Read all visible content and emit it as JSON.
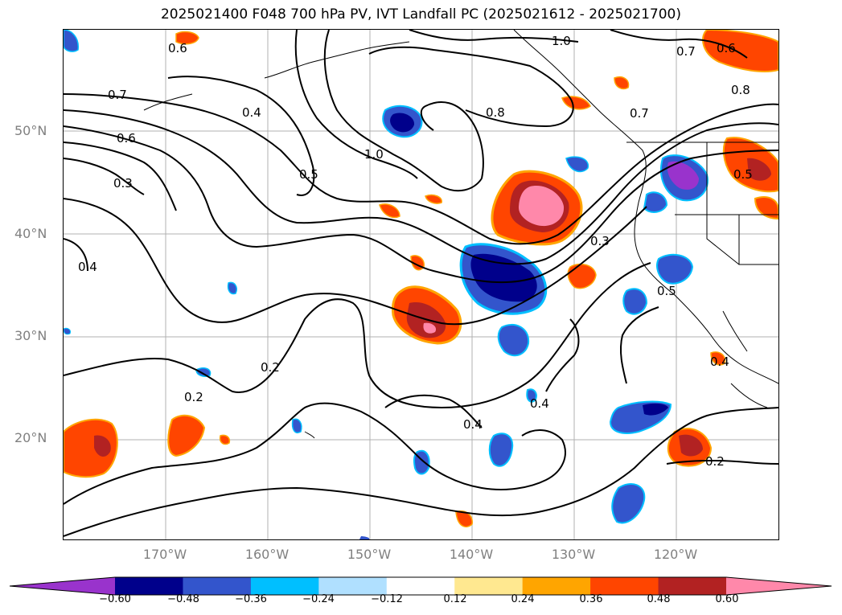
{
  "title": "2025021400 F048 700 hPa PV, IVT Landfall PC (2025021612 - 2025021700)",
  "lat_labels": [
    "50°N",
    "40°N",
    "30°N",
    "20°N"
  ],
  "lon_labels": [
    "170°W",
    "160°W",
    "150°W",
    "140°W",
    "130°W",
    "120°W"
  ],
  "contour_labels": [
    "0.6",
    "1.0",
    "0.7",
    "0.7",
    "0.6",
    "0.4",
    "0.8",
    "0.7",
    "0.8",
    "0.6",
    "1.0",
    "0.5",
    "0.3",
    "0.5",
    "0.4",
    "0.3",
    "0.5",
    "0.2",
    "0.2",
    "0.4",
    "0.4",
    "0.4",
    "0.2"
  ],
  "colorbar": {
    "ticks": [
      "−0.60",
      "−0.48",
      "−0.36",
      "−0.24",
      "−0.12",
      "0.12",
      "0.24",
      "0.36",
      "0.48",
      "0.60"
    ],
    "colors": [
      "#9933cc",
      "#00008b",
      "#3355cc",
      "#00bfff",
      "#b0e0ff",
      "#ffffff",
      "#ffe890",
      "#ffa500",
      "#ff4500",
      "#b22222",
      "#ff88aa"
    ],
    "extend": "both"
  }
}
